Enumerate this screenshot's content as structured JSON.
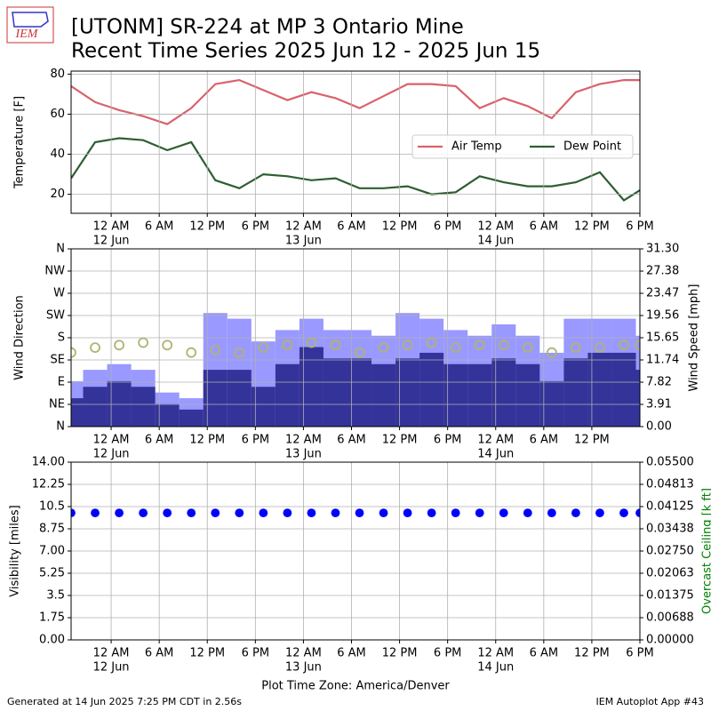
{
  "title": "[UTONM] SR-224 at MP 3 Ontario Mine",
  "subtitle": "Recent Time Series 2025 Jun 12 - 2025 Jun 15",
  "logo_text": "IEM",
  "footer_left": "Generated at 14 Jun 2025 7:25 PM CDT in 2.56s",
  "footer_right": "IEM Autoplot App #43",
  "chart_data": [
    {
      "type": "line",
      "ylabel": "Temperature [F]",
      "x": [
        "2025-06-11 19:00",
        "2025-06-11 22:00",
        "2025-06-12 01:00",
        "2025-06-12 04:00",
        "2025-06-12 07:00",
        "2025-06-12 10:00",
        "2025-06-12 13:00",
        "2025-06-12 16:00",
        "2025-06-12 19:00",
        "2025-06-12 22:00",
        "2025-06-13 01:00",
        "2025-06-13 04:00",
        "2025-06-13 07:00",
        "2025-06-13 10:00",
        "2025-06-13 13:00",
        "2025-06-13 16:00",
        "2025-06-13 19:00",
        "2025-06-13 22:00",
        "2025-06-14 01:00",
        "2025-06-14 04:00",
        "2025-06-14 07:00",
        "2025-06-14 10:00",
        "2025-06-14 13:00",
        "2025-06-14 16:00",
        "2025-06-14 18:00"
      ],
      "series": [
        {
          "name": "Air Temp",
          "color": "#d9626b",
          "values": [
            74,
            66,
            62,
            59,
            55,
            63,
            75,
            77,
            72,
            67,
            71,
            68,
            63,
            69,
            75,
            75,
            74,
            63,
            68,
            64,
            58,
            71,
            75,
            77,
            77
          ]
        },
        {
          "name": "Dew Point",
          "color": "#2e5e31",
          "values": [
            28,
            46,
            48,
            47,
            42,
            46,
            27,
            23,
            30,
            29,
            27,
            28,
            23,
            23,
            24,
            20,
            21,
            29,
            26,
            24,
            24,
            26,
            31,
            17,
            22
          ]
        }
      ],
      "xlim": [
        "2025-06-11 19:00",
        "2025-06-14 18:00"
      ],
      "xticks": [
        {
          "value": "2025-06-12 00:00",
          "label": "12 AM"
        },
        {
          "value": "2025-06-12 06:00",
          "label": "6 AM"
        },
        {
          "value": "2025-06-12 12:00",
          "label": "12 PM"
        },
        {
          "value": "2025-06-12 18:00",
          "label": "6 PM"
        },
        {
          "value": "2025-06-13 00:00",
          "label": "12 AM"
        },
        {
          "value": "2025-06-13 06:00",
          "label": "6 AM"
        },
        {
          "value": "2025-06-13 12:00",
          "label": "12 PM"
        },
        {
          "value": "2025-06-13 18:00",
          "label": "6 PM"
        },
        {
          "value": "2025-06-14 00:00",
          "label": "12 AM"
        },
        {
          "value": "2025-06-14 06:00",
          "label": "6 AM"
        },
        {
          "value": "2025-06-14 12:00",
          "label": "12 PM"
        },
        {
          "value": "2025-06-14 18:00",
          "label": "6 PM"
        }
      ],
      "xdates": [
        {
          "value": "2025-06-12 00:00",
          "label": "12 Jun"
        },
        {
          "value": "2025-06-13 00:00",
          "label": "13 Jun"
        },
        {
          "value": "2025-06-14 00:00",
          "label": "14 Jun"
        }
      ],
      "ylim": [
        10.5,
        81.5
      ],
      "yticks": [
        20,
        40,
        60,
        80
      ],
      "grid": true,
      "legend": "right"
    },
    {
      "type": "bar",
      "ylabel": "Wind Direction",
      "y2label": "Wind Speed [mph]",
      "x": [
        "2025-06-11 19:00",
        "2025-06-11 22:00",
        "2025-06-12 01:00",
        "2025-06-12 04:00",
        "2025-06-12 07:00",
        "2025-06-12 10:00",
        "2025-06-12 13:00",
        "2025-06-12 16:00",
        "2025-06-12 19:00",
        "2025-06-12 22:00",
        "2025-06-13 01:00",
        "2025-06-13 04:00",
        "2025-06-13 07:00",
        "2025-06-13 10:00",
        "2025-06-13 13:00",
        "2025-06-13 16:00",
        "2025-06-13 19:00",
        "2025-06-13 22:00",
        "2025-06-14 01:00",
        "2025-06-14 04:00",
        "2025-06-14 07:00",
        "2025-06-14 10:00",
        "2025-06-14 13:00",
        "2025-06-14 16:00",
        "2025-06-14 18:00"
      ],
      "series": [
        {
          "type": "bar",
          "axis": "y2",
          "color": "#9999ff",
          "values": [
            8,
            10,
            11,
            10,
            6,
            5,
            20,
            19,
            15,
            17,
            19,
            17,
            17,
            16,
            20,
            19,
            17,
            16,
            18,
            16,
            13,
            19,
            19,
            19,
            16
          ]
        },
        {
          "type": "bar",
          "axis": "y2",
          "color": "#333399",
          "values": [
            5,
            7,
            8,
            7,
            4,
            3,
            10,
            10,
            7,
            11,
            14,
            12,
            12,
            11,
            12,
            13,
            11,
            11,
            12,
            11,
            8,
            12,
            13,
            13,
            10
          ]
        },
        {
          "type": "scatter",
          "color": "#b0b46e",
          "values": [
            150,
            160,
            165,
            170,
            165,
            150,
            155,
            150,
            160,
            165,
            170,
            165,
            150,
            160,
            165,
            170,
            160,
            165,
            165,
            160,
            150,
            160,
            160,
            165,
            165
          ]
        }
      ],
      "xlim": [
        "2025-06-11 19:00",
        "2025-06-14 18:00"
      ],
      "xticks": [
        {
          "value": "2025-06-12 00:00",
          "label": "12 AM"
        },
        {
          "value": "2025-06-12 06:00",
          "label": "6 AM"
        },
        {
          "value": "2025-06-12 12:00",
          "label": "12 PM"
        },
        {
          "value": "2025-06-12 18:00",
          "label": "6 PM"
        },
        {
          "value": "2025-06-13 00:00",
          "label": "12 AM"
        },
        {
          "value": "2025-06-13 06:00",
          "label": "6 AM"
        },
        {
          "value": "2025-06-13 12:00",
          "label": "12 PM"
        },
        {
          "value": "2025-06-13 18:00",
          "label": "6 PM"
        },
        {
          "value": "2025-06-14 00:00",
          "label": "12 AM"
        },
        {
          "value": "2025-06-14 06:00",
          "label": "6 AM"
        },
        {
          "value": "2025-06-14 12:00",
          "label": "12 PM"
        }
      ],
      "xdates": [
        {
          "value": "2025-06-12 00:00",
          "label": "12 Jun"
        },
        {
          "value": "2025-06-13 00:00",
          "label": "13 Jun"
        },
        {
          "value": "2025-06-14 00:00",
          "label": "14 Jun"
        }
      ],
      "ylim": [
        0,
        360
      ],
      "yticks": [
        {
          "value": 0,
          "label": "N"
        },
        {
          "value": 45,
          "label": "NE"
        },
        {
          "value": 90,
          "label": "E"
        },
        {
          "value": 135,
          "label": "SE"
        },
        {
          "value": 180,
          "label": "S"
        },
        {
          "value": 225,
          "label": "SW"
        },
        {
          "value": 270,
          "label": "W"
        },
        {
          "value": 315,
          "label": "NW"
        },
        {
          "value": 360,
          "label": "N"
        }
      ],
      "y2lim": [
        0,
        31.3
      ],
      "y2ticks": [
        {
          "value": 0,
          "label": "0.00"
        },
        3.91,
        7.82,
        11.74,
        15.65,
        19.56,
        23.47,
        27.38,
        {
          "value": 31.3,
          "label": "31.30"
        }
      ],
      "grid": true
    },
    {
      "type": "scatter",
      "ylabel": "Visibility [miles]",
      "y2label": "Overcast Ceiling [k ft]",
      "y2label_color": "#008000",
      "xlabel": "Plot Time Zone: America/Denver",
      "x": [
        "2025-06-11 19:00",
        "2025-06-11 22:00",
        "2025-06-12 01:00",
        "2025-06-12 04:00",
        "2025-06-12 07:00",
        "2025-06-12 10:00",
        "2025-06-12 13:00",
        "2025-06-12 16:00",
        "2025-06-12 19:00",
        "2025-06-12 22:00",
        "2025-06-13 01:00",
        "2025-06-13 04:00",
        "2025-06-13 07:00",
        "2025-06-13 10:00",
        "2025-06-13 13:00",
        "2025-06-13 16:00",
        "2025-06-13 19:00",
        "2025-06-13 22:00",
        "2025-06-14 01:00",
        "2025-06-14 04:00",
        "2025-06-14 07:00",
        "2025-06-14 10:00",
        "2025-06-14 13:00",
        "2025-06-14 16:00",
        "2025-06-14 18:00"
      ],
      "series": [
        {
          "type": "scatter",
          "color": "#0000ff",
          "filled": true,
          "values": [
            10,
            10,
            10,
            10,
            10,
            10,
            10,
            10,
            10,
            10,
            10,
            10,
            10,
            10,
            10,
            10,
            10,
            10,
            10,
            10,
            10,
            10,
            10,
            10,
            10
          ]
        }
      ],
      "xlim": [
        "2025-06-11 19:00",
        "2025-06-14 18:00"
      ],
      "xticks": [
        {
          "value": "2025-06-12 00:00",
          "label": "12 AM"
        },
        {
          "value": "2025-06-12 06:00",
          "label": "6 AM"
        },
        {
          "value": "2025-06-12 12:00",
          "label": "12 PM"
        },
        {
          "value": "2025-06-12 18:00",
          "label": "6 PM"
        },
        {
          "value": "2025-06-13 00:00",
          "label": "12 AM"
        },
        {
          "value": "2025-06-13 06:00",
          "label": "6 AM"
        },
        {
          "value": "2025-06-13 12:00",
          "label": "12 PM"
        },
        {
          "value": "2025-06-13 18:00",
          "label": "6 PM"
        },
        {
          "value": "2025-06-14 00:00",
          "label": "12 AM"
        },
        {
          "value": "2025-06-14 06:00",
          "label": "6 AM"
        },
        {
          "value": "2025-06-14 12:00",
          "label": "12 PM"
        },
        {
          "value": "2025-06-14 18:00",
          "label": "6 PM"
        }
      ],
      "xdates": [
        {
          "value": "2025-06-12 00:00",
          "label": "12 Jun"
        },
        {
          "value": "2025-06-13 00:00",
          "label": "13 Jun"
        },
        {
          "value": "2025-06-14 00:00",
          "label": "14 Jun"
        }
      ],
      "ylim": [
        0,
        14
      ],
      "yticks": [
        {
          "value": 0,
          "label": "0.00"
        },
        1.75,
        3.5,
        5.25,
        {
          "value": 7,
          "label": "7.00"
        },
        8.75,
        10.5,
        12.25,
        {
          "value": 14,
          "label": "14.00"
        }
      ],
      "y2lim": [
        0,
        0.055
      ],
      "y2ticks": [
        {
          "value": 0,
          "label": "0.00000"
        },
        {
          "value": 0.00688,
          "label": "0.00688"
        },
        {
          "value": 0.01375,
          "label": "0.01375"
        },
        {
          "value": 0.02063,
          "label": "0.02063"
        },
        {
          "value": 0.0275,
          "label": "0.02750"
        },
        {
          "value": 0.03438,
          "label": "0.03438"
        },
        {
          "value": 0.04125,
          "label": "0.04125"
        },
        {
          "value": 0.04813,
          "label": "0.04813"
        },
        {
          "value": 0.055,
          "label": "0.05500"
        }
      ],
      "grid": true
    }
  ]
}
